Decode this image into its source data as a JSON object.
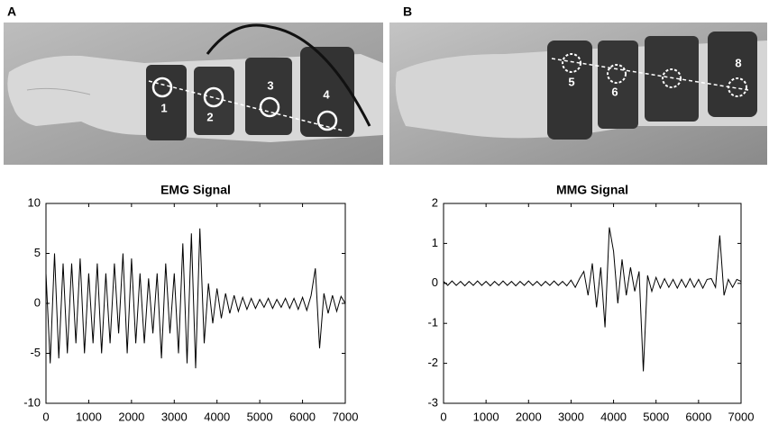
{
  "photos": [
    {
      "label": "A",
      "markers": [
        "1",
        "2",
        "3",
        "4"
      ]
    },
    {
      "label": "B",
      "markers": [
        "5",
        "6",
        "8"
      ]
    }
  ],
  "chart_data": [
    {
      "type": "line",
      "title": "EMG Signal",
      "color": "#000000",
      "x": [
        0,
        100,
        200,
        300,
        400,
        500,
        600,
        700,
        800,
        900,
        1000,
        1100,
        1200,
        1300,
        1400,
        1500,
        1600,
        1700,
        1800,
        1900,
        2000,
        2100,
        2200,
        2300,
        2400,
        2500,
        2600,
        2700,
        2800,
        2900,
        3000,
        3100,
        3200,
        3300,
        3400,
        3500,
        3600,
        3700,
        3800,
        3900,
        4000,
        4100,
        4200,
        4300,
        4400,
        4500,
        4600,
        4700,
        4800,
        4900,
        5000,
        5100,
        5200,
        5300,
        5400,
        5500,
        5600,
        5700,
        5800,
        5900,
        6000,
        6100,
        6200,
        6300,
        6400,
        6500,
        6600,
        6700,
        6800,
        6900,
        7000
      ],
      "values": [
        3,
        -6,
        5,
        -5.5,
        4,
        -5,
        4,
        -4,
        4.5,
        -5,
        3,
        -4,
        4,
        -5,
        3,
        -4,
        4,
        -3,
        5,
        -5,
        4.5,
        -4,
        3,
        -4,
        2.5,
        -3,
        3,
        -5.5,
        4,
        -3,
        3,
        -5,
        6,
        -6,
        7,
        -6.5,
        7.5,
        -4,
        2,
        -2,
        1.5,
        -1.5,
        1,
        -1,
        0.8,
        -0.8,
        0.6,
        -0.6,
        0.5,
        -0.5,
        0.4,
        -0.4,
        0.5,
        -0.5,
        0.4,
        -0.4,
        0.5,
        -0.5,
        0.5,
        -0.6,
        0.6,
        -0.7,
        0.8,
        3.5,
        -4.5,
        1,
        -1,
        0.8,
        -0.8,
        0.7,
        0
      ],
      "xlim": [
        0,
        7000
      ],
      "xticks": [
        0,
        1000,
        2000,
        3000,
        4000,
        5000,
        6000,
        7000
      ],
      "ylim": [
        -10,
        10
      ],
      "yticks": [
        -10,
        -5,
        0,
        5,
        10
      ]
    },
    {
      "type": "line",
      "title": "MMG Signal",
      "color": "#000000",
      "x": [
        0,
        100,
        200,
        300,
        400,
        500,
        600,
        700,
        800,
        900,
        1000,
        1100,
        1200,
        1300,
        1400,
        1500,
        1600,
        1700,
        1800,
        1900,
        2000,
        2100,
        2200,
        2300,
        2400,
        2500,
        2600,
        2700,
        2800,
        2900,
        3000,
        3100,
        3200,
        3300,
        3400,
        3500,
        3600,
        3700,
        3800,
        3900,
        4000,
        4100,
        4200,
        4300,
        4400,
        4500,
        4600,
        4700,
        4800,
        4900,
        5000,
        5100,
        5200,
        5300,
        5400,
        5500,
        5600,
        5700,
        5800,
        5900,
        6000,
        6100,
        6200,
        6300,
        6400,
        6500,
        6600,
        6700,
        6800,
        6900,
        7000
      ],
      "values": [
        0.05,
        -0.05,
        0.06,
        -0.05,
        0.05,
        -0.06,
        0.05,
        -0.05,
        0.06,
        -0.05,
        0.05,
        -0.06,
        0.05,
        -0.05,
        0.06,
        -0.05,
        0.05,
        -0.06,
        0.05,
        -0.05,
        0.06,
        -0.05,
        0.05,
        -0.06,
        0.05,
        -0.05,
        0.06,
        -0.05,
        0.05,
        -0.06,
        0.08,
        -0.1,
        0.12,
        0.3,
        -0.3,
        0.5,
        -0.6,
        0.4,
        -1.1,
        1.4,
        0.8,
        -0.5,
        0.6,
        -0.3,
        0.4,
        -0.2,
        0.3,
        -2.2,
        0.2,
        -0.2,
        0.15,
        -0.12,
        0.12,
        -0.1,
        0.1,
        -0.12,
        0.1,
        -0.1,
        0.12,
        -0.1,
        0.1,
        -0.12,
        0.1,
        0.12,
        -0.1,
        1.2,
        -0.3,
        0.1,
        -0.1,
        0.1,
        0.05
      ],
      "xlim": [
        0,
        7000
      ],
      "xticks": [
        0,
        1000,
        2000,
        3000,
        4000,
        5000,
        6000,
        7000
      ],
      "ylim": [
        -3,
        2
      ],
      "yticks": [
        -3,
        -2,
        -1,
        0,
        1,
        2
      ]
    }
  ]
}
